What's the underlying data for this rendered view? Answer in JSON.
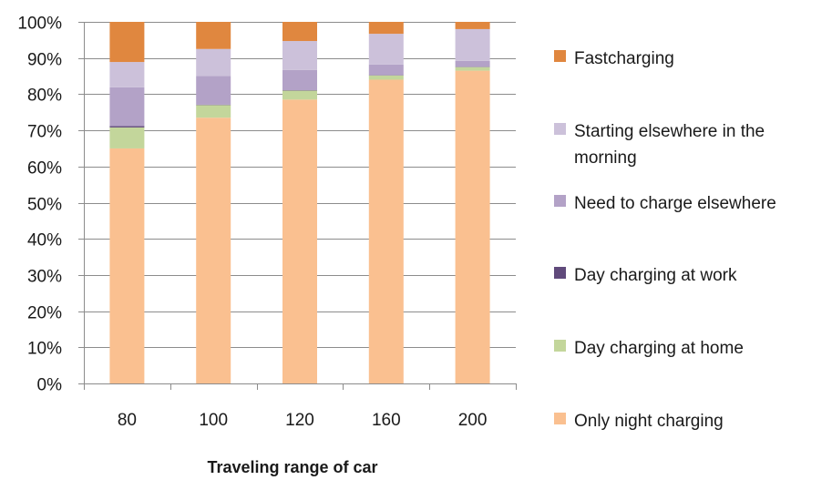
{
  "chart_data": {
    "type": "bar",
    "stacked": true,
    "percent_stacked": true,
    "categories": [
      "80",
      "100",
      "120",
      "160",
      "200"
    ],
    "xlabel": "Traveling range of car",
    "ylabel": "",
    "ylim": [
      0,
      100
    ],
    "yticks": [
      "0%",
      "10%",
      "20%",
      "30%",
      "40%",
      "50%",
      "60%",
      "70%",
      "80%",
      "90%",
      "100%"
    ],
    "grid": true,
    "legend_position": "right",
    "series": [
      {
        "name": "Only night charging",
        "color": "#FAC090",
        "values": [
          65.0,
          73.5,
          78.5,
          84.0,
          86.5
        ]
      },
      {
        "name": "Day charging at home",
        "color": "#C3D69B",
        "values": [
          5.8,
          3.5,
          2.5,
          1.2,
          1.0
        ]
      },
      {
        "name": "Day charging at work",
        "color": "#604A7B",
        "values": [
          0.4,
          0.1,
          0.1,
          0.1,
          0.1
        ]
      },
      {
        "name": "Need to charge elsewhere",
        "color": "#B3A2C7",
        "values": [
          10.7,
          7.9,
          5.6,
          2.9,
          1.6
        ]
      },
      {
        "name": "Starting elsewhere in the morning",
        "color": "#CCC1DA",
        "values": [
          7.0,
          7.5,
          8.0,
          8.5,
          8.8
        ]
      },
      {
        "name": "Fastcharging",
        "color": "#E0873F",
        "values": [
          11.1,
          7.5,
          5.3,
          3.3,
          2.0
        ]
      }
    ],
    "legend_order": [
      {
        "name_lines": [
          "Fastcharging"
        ],
        "series_index": 5
      },
      {
        "name_lines": [
          "Starting elsewhere in the",
          "morning"
        ],
        "series_index": 4
      },
      {
        "name_lines": [
          "Need to charge elsewhere"
        ],
        "series_index": 3
      },
      {
        "name_lines": [
          "Day charging at work"
        ],
        "series_index": 2
      },
      {
        "name_lines": [
          "Day charging at home"
        ],
        "series_index": 1
      },
      {
        "name_lines": [
          "Only night charging"
        ],
        "series_index": 0
      }
    ]
  }
}
